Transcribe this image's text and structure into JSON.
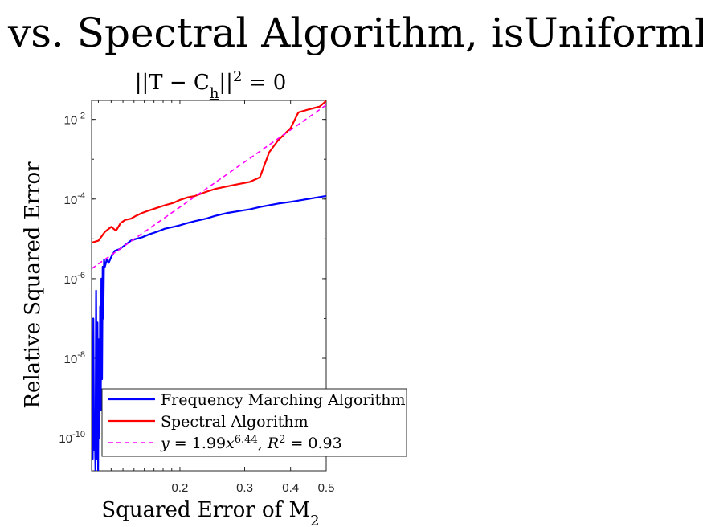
{
  "figure": {
    "title": "vs. Spectral Algorithm, isUniformPow"
  },
  "chart_data": {
    "type": "line",
    "title": "||T − C_h||² = 0",
    "title_parts": {
      "pre": "||T − C",
      "sub": "h",
      "post": "||",
      "sup": "2",
      "eq": " = 0"
    },
    "xlabel": "Squared Error of M",
    "xlabel_sub": "2",
    "ylabel": "Relative Squared Error",
    "x_scale": "log",
    "y_scale": "log",
    "xlim": [
      0.115,
      0.5
    ],
    "ylim": [
      1.5e-11,
      0.03
    ],
    "x_ticks": [
      {
        "value": 0.2,
        "label": "0.2"
      },
      {
        "value": 0.3,
        "label": "0.3"
      },
      {
        "value": 0.4,
        "label": "0.4"
      },
      {
        "value": 0.5,
        "label": "0.5"
      }
    ],
    "y_ticks": [
      {
        "value": 0.01,
        "base": "10",
        "exp": "-2"
      },
      {
        "value": 0.0001,
        "base": "10",
        "exp": "-4"
      },
      {
        "value": 1e-06,
        "base": "10",
        "exp": "-6"
      },
      {
        "value": 1e-08,
        "base": "10",
        "exp": "-8"
      },
      {
        "value": 1e-10,
        "base": "10",
        "exp": "-10"
      }
    ],
    "grid": false,
    "legend_position": "bottom-right",
    "series": [
      {
        "name": "Frequency Marching Algorithm",
        "color": "#0000ff",
        "style": "solid",
        "x": [
          0.115,
          0.1158,
          0.1163,
          0.1168,
          0.1173,
          0.1178,
          0.1183,
          0.1188,
          0.1193,
          0.1198,
          0.1203,
          0.1208,
          0.1213,
          0.1218,
          0.1223,
          0.1228,
          0.1233,
          0.1238,
          0.1243,
          0.125,
          0.1265,
          0.128,
          0.13,
          0.133,
          0.137,
          0.142,
          0.147,
          0.152,
          0.158,
          0.165,
          0.173,
          0.182,
          0.192,
          0.2,
          0.21,
          0.22,
          0.235,
          0.25,
          0.27,
          0.29,
          0.31,
          0.33,
          0.35,
          0.37,
          0.4,
          0.43,
          0.46,
          0.5
        ],
        "y": [
          3e-10,
          3e-11,
          1e-07,
          5e-11,
          3e-10,
          1.5e-11,
          5e-07,
          3e-11,
          8e-08,
          1.5e-11,
          3e-08,
          1e-10,
          2e-07,
          5e-10,
          1e-06,
          3e-09,
          2e-06,
          1e-07,
          3e-06,
          2e-06,
          3e-06,
          2.5e-06,
          3.5e-06,
          5e-06,
          5.5e-06,
          7e-06,
          9e-06,
          1e-05,
          1.1e-05,
          1.3e-05,
          1.5e-05,
          1.8e-05,
          2e-05,
          2.2e-05,
          2.5e-05,
          2.8e-05,
          3.2e-05,
          3.8e-05,
          4.5e-05,
          5e-05,
          5.5e-05,
          6.3e-05,
          7e-05,
          7.7e-05,
          8.5e-05,
          9.5e-05,
          0.000105,
          0.00012
        ]
      },
      {
        "name": "Spectral Algorithm",
        "color": "#ff0000",
        "style": "solid",
        "x": [
          0.115,
          0.12,
          0.125,
          0.13,
          0.134,
          0.138,
          0.142,
          0.147,
          0.152,
          0.158,
          0.165,
          0.173,
          0.182,
          0.192,
          0.2,
          0.21,
          0.22,
          0.235,
          0.25,
          0.27,
          0.29,
          0.31,
          0.33,
          0.35,
          0.37,
          0.4,
          0.42,
          0.45,
          0.48,
          0.5
        ],
        "y": [
          8e-06,
          9e-06,
          1.5e-05,
          2e-05,
          1.6e-05,
          2.5e-05,
          3e-05,
          3.2e-05,
          3.8e-05,
          4.5e-05,
          5.2e-05,
          6e-05,
          7e-05,
          8e-05,
          9.5e-05,
          0.00011,
          0.00012,
          0.00015,
          0.00018,
          0.00021,
          0.00024,
          0.00027,
          0.00035,
          0.0015,
          0.003,
          0.006,
          0.015,
          0.018,
          0.021,
          0.029
        ]
      },
      {
        "name": "y = 1.99x^6.44, R² = 0.93",
        "label_parts": {
          "y": "y",
          "eq1": " = 1.99",
          "x": "x",
          "exp": "6.44",
          "sep": ", ",
          "R": "R",
          "R_exp": "2",
          "eq2": " = 0.93"
        },
        "color": "#ff00ff",
        "style": "dashed",
        "fit": {
          "a": 1.99,
          "b": 6.44
        }
      }
    ]
  }
}
